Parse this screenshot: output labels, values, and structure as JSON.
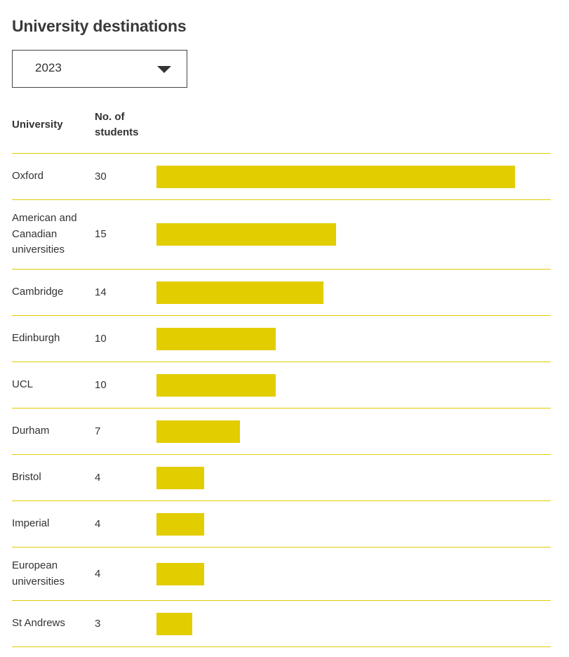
{
  "header": {
    "title": "University destinations"
  },
  "year_select": {
    "selected": "2023"
  },
  "table": {
    "col_university": "University",
    "col_students": "No. of students"
  },
  "colors": {
    "bar": "#e2cd00",
    "rule": "#e2cd00"
  },
  "chart_data": {
    "type": "bar",
    "orientation": "horizontal",
    "categories": [
      "Oxford",
      "American and Canadian universities",
      "Cambridge",
      "Edinburgh",
      "UCL",
      "Durham",
      "Bristol",
      "Imperial",
      "European universities",
      "St Andrews"
    ],
    "values": [
      30,
      15,
      14,
      10,
      10,
      7,
      4,
      4,
      4,
      3
    ],
    "value_labels": [
      "30",
      "15",
      "14",
      "10",
      "10",
      "7",
      "4",
      "4",
      "4",
      "3"
    ],
    "title": "University destinations",
    "xlim": [
      0,
      30
    ]
  }
}
